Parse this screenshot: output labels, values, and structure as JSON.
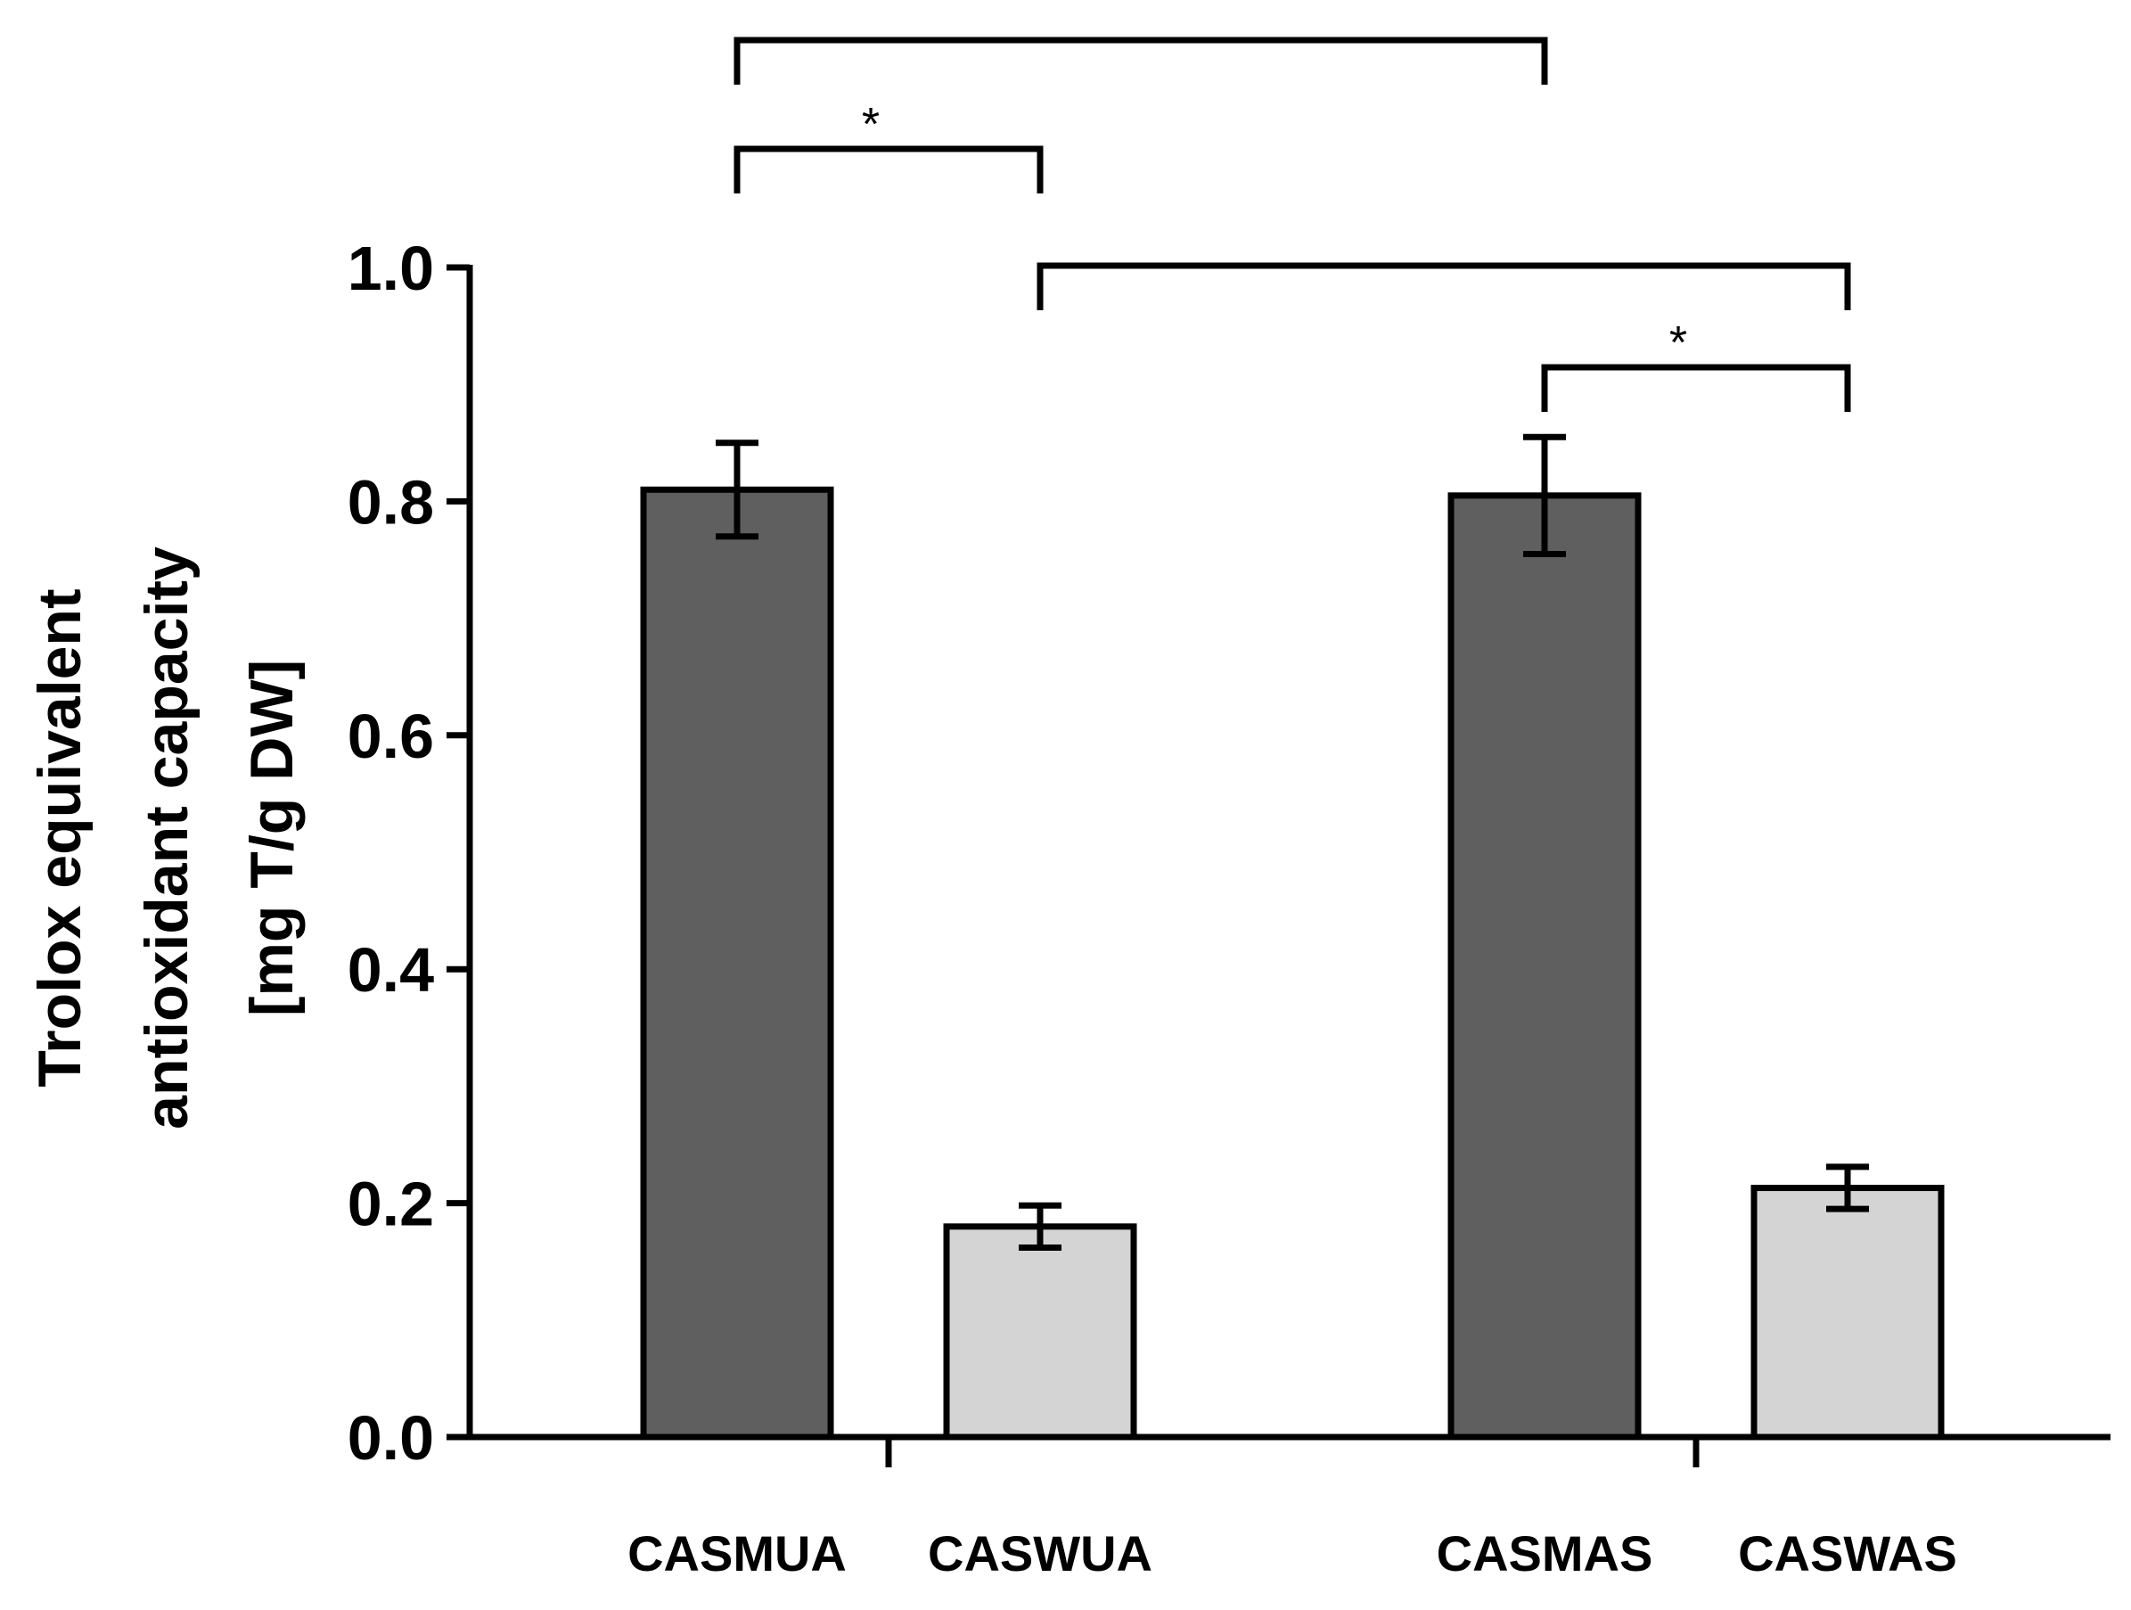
{
  "chart_data": {
    "type": "bar",
    "title": "",
    "xlabel": "",
    "ylabel_lines": [
      "Trolox equivalent",
      "antioxidant capacity",
      "[mg T/g DW]"
    ],
    "ylim": [
      0,
      1.0
    ],
    "yticks": [
      0.0,
      0.2,
      0.4,
      0.6,
      0.8,
      1.0
    ],
    "ytick_labels": [
      "0.0",
      "0.2",
      "0.4",
      "0.6",
      "0.8",
      "1.0"
    ],
    "grid": false,
    "bars": [
      {
        "category": "CASMUA",
        "value": 0.81,
        "error": 0.04,
        "color": "#5f5f5f",
        "group": 0
      },
      {
        "category": "CASWUA",
        "value": 0.18,
        "error": 0.018,
        "color": "#d4d4d4",
        "group": 0
      },
      {
        "category": "CASMAS",
        "value": 0.805,
        "error": 0.05,
        "color": "#5f5f5f",
        "group": 1
      },
      {
        "category": "CASWAS",
        "value": 0.213,
        "error": 0.018,
        "color": "#d4d4d4",
        "group": 1
      }
    ],
    "significance": [
      {
        "from": "CASMUA",
        "to": "CASWUA",
        "label": "*"
      },
      {
        "from": "CASMUA",
        "to": "CASMAS",
        "label": ""
      },
      {
        "from": "CASWUA",
        "to": "CASWAS",
        "label": ""
      },
      {
        "from": "CASMAS",
        "to": "CASWAS",
        "label": "*"
      }
    ]
  }
}
